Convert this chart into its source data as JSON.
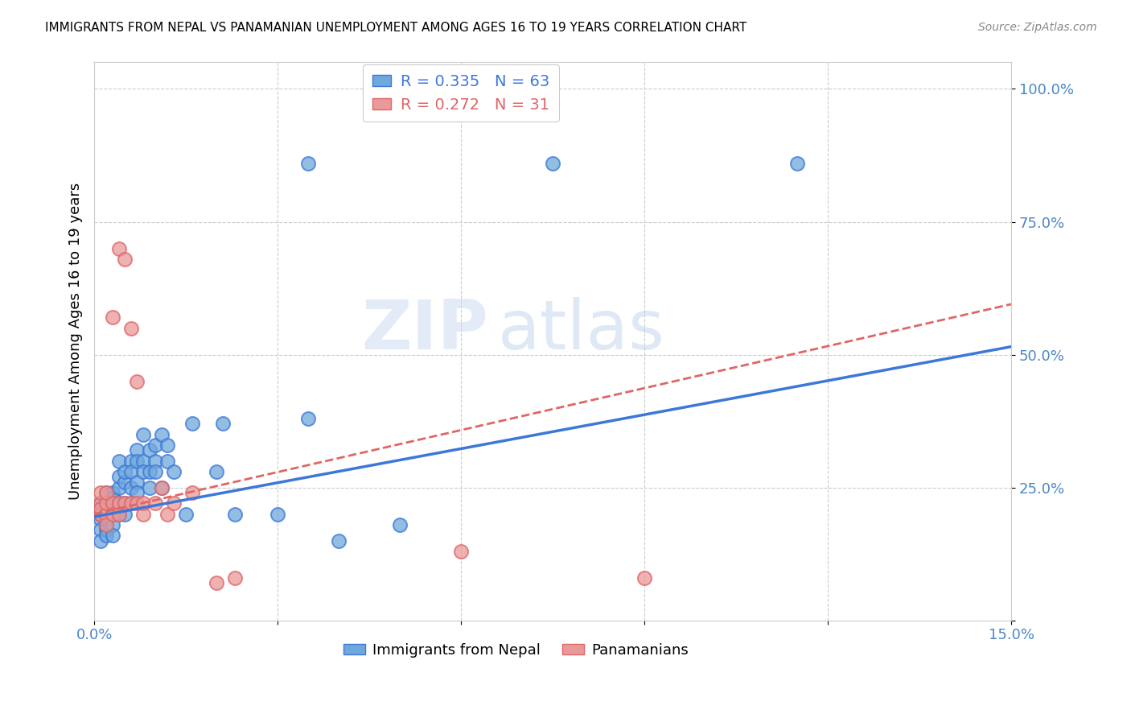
{
  "title": "IMMIGRANTS FROM NEPAL VS PANAMANIAN UNEMPLOYMENT AMONG AGES 16 TO 19 YEARS CORRELATION CHART",
  "source": "Source: ZipAtlas.com",
  "ylabel_label": "Unemployment Among Ages 16 to 19 years",
  "xlim": [
    0.0,
    0.15
  ],
  "ylim": [
    0.0,
    1.05
  ],
  "xticks": [
    0.0,
    0.03,
    0.06,
    0.09,
    0.12,
    0.15
  ],
  "xticklabels": [
    "0.0%",
    "",
    "",
    "",
    "",
    "15.0%"
  ],
  "yticks": [
    0.0,
    0.25,
    0.5,
    0.75,
    1.0
  ],
  "yticklabels": [
    "",
    "25.0%",
    "50.0%",
    "75.0%",
    "100.0%"
  ],
  "color_blue": "#6fa8dc",
  "color_pink": "#ea9999",
  "color_blue_dark": "#3c78d8",
  "color_pink_dark": "#e06666",
  "color_axis": "#4a86c8",
  "R1": 0.335,
  "N1": 63,
  "R2": 0.272,
  "N2": 31,
  "watermark": "ZIPatlas",
  "nepal_x": [
    0.001,
    0.001,
    0.001,
    0.001,
    0.001,
    0.001,
    0.002,
    0.002,
    0.002,
    0.002,
    0.002,
    0.002,
    0.002,
    0.003,
    0.003,
    0.003,
    0.003,
    0.003,
    0.003,
    0.003,
    0.004,
    0.004,
    0.004,
    0.004,
    0.004,
    0.005,
    0.005,
    0.005,
    0.005,
    0.006,
    0.006,
    0.006,
    0.006,
    0.007,
    0.007,
    0.007,
    0.007,
    0.008,
    0.008,
    0.008,
    0.009,
    0.009,
    0.009,
    0.01,
    0.01,
    0.01,
    0.011,
    0.011,
    0.012,
    0.012,
    0.013,
    0.015,
    0.016,
    0.02,
    0.021,
    0.023,
    0.03,
    0.035,
    0.04,
    0.05,
    0.035,
    0.115,
    0.075
  ],
  "nepal_y": [
    0.19,
    0.2,
    0.21,
    0.22,
    0.17,
    0.15,
    0.2,
    0.22,
    0.24,
    0.18,
    0.17,
    0.19,
    0.16,
    0.2,
    0.22,
    0.24,
    0.21,
    0.18,
    0.16,
    0.23,
    0.25,
    0.27,
    0.22,
    0.2,
    0.3,
    0.26,
    0.28,
    0.22,
    0.2,
    0.3,
    0.28,
    0.25,
    0.22,
    0.32,
    0.3,
    0.26,
    0.24,
    0.3,
    0.28,
    0.35,
    0.32,
    0.28,
    0.25,
    0.33,
    0.3,
    0.28,
    0.35,
    0.25,
    0.33,
    0.3,
    0.28,
    0.2,
    0.37,
    0.28,
    0.37,
    0.2,
    0.2,
    0.38,
    0.15,
    0.18,
    0.86,
    0.86,
    0.86
  ],
  "panama_x": [
    0.001,
    0.001,
    0.001,
    0.001,
    0.002,
    0.002,
    0.002,
    0.002,
    0.003,
    0.003,
    0.003,
    0.004,
    0.004,
    0.004,
    0.005,
    0.005,
    0.006,
    0.006,
    0.007,
    0.007,
    0.008,
    0.008,
    0.01,
    0.011,
    0.012,
    0.013,
    0.016,
    0.02,
    0.023,
    0.06,
    0.09
  ],
  "panama_y": [
    0.2,
    0.22,
    0.24,
    0.21,
    0.2,
    0.22,
    0.18,
    0.24,
    0.22,
    0.2,
    0.57,
    0.22,
    0.2,
    0.7,
    0.22,
    0.68,
    0.55,
    0.22,
    0.22,
    0.45,
    0.2,
    0.22,
    0.22,
    0.25,
    0.2,
    0.22,
    0.24,
    0.07,
    0.08,
    0.13,
    0.08
  ],
  "blue_line_x": [
    0.0,
    0.15
  ],
  "blue_line_y": [
    0.195,
    0.515
  ],
  "pink_line_x": [
    0.0,
    0.15
  ],
  "pink_line_y": [
    0.2,
    0.595
  ]
}
